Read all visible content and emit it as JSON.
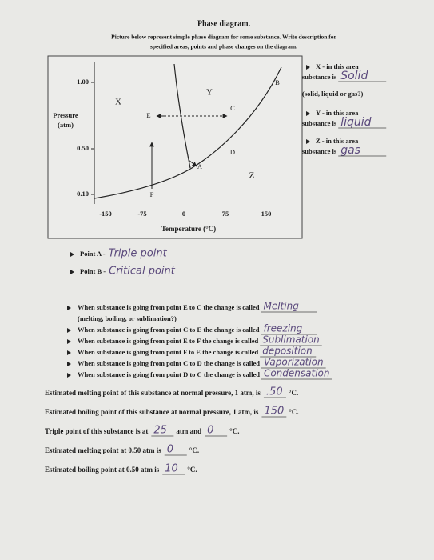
{
  "header": {
    "title": "Phase diagram.",
    "instructions": [
      "Picture below represent simple phase diagram for some substance. Write description for",
      "specified areas, points and phase changes on the diagram."
    ]
  },
  "diagram": {
    "y_label": [
      "Pressure",
      "(atm)"
    ],
    "x_label": "Temperature (°C)",
    "y_ticks": [
      "1.00",
      "0.50",
      "0.10"
    ],
    "x_ticks": [
      "-150",
      "-75",
      "0",
      "75",
      "150"
    ],
    "regions": [
      "X",
      "Y",
      "Z"
    ],
    "points": [
      "A",
      "B",
      "C",
      "D",
      "E",
      "F"
    ]
  },
  "areas": [
    {
      "prompt": [
        "X - in this area",
        "substance is"
      ],
      "answer": "Solid",
      "note": "(solid, liquid or gas?)"
    },
    {
      "prompt": [
        "Y - in this area",
        "substance is"
      ],
      "answer": "liquid"
    },
    {
      "prompt": [
        "Z - in this area",
        "substance is"
      ],
      "answer": "gas"
    }
  ],
  "points": [
    {
      "label": "Point A -",
      "answer": "Triple point"
    },
    {
      "label": "Point B -",
      "answer": "Critical point"
    }
  ],
  "changes": [
    {
      "text": "When substance is going from point E to C the change is called",
      "answer": "Melting",
      "note": "(melting, boiling, or sublimation?)"
    },
    {
      "text": "When substance is going from point C to E the change is called",
      "answer": "freezing"
    },
    {
      "text": "When substance is going from point E to F the change is called",
      "answer": "Sublimation"
    },
    {
      "text": "When substance is going from point F to E the change is called",
      "answer": "deposition"
    },
    {
      "text": "When substance is going from point C to D the change is called",
      "answer": "Vaporization"
    },
    {
      "text": "When substance is going from point D to C the change is called",
      "answer": "Condensation"
    }
  ],
  "estimates": [
    [
      "Estimated melting point of this substance at normal pressure, 1 atm, is",
      ".50",
      "°C."
    ],
    [
      "Estimated boiling point of this substance at normal pressure, 1 atm, is",
      "150",
      "°C."
    ],
    [
      "Triple point of this substance is at",
      "25",
      "atm and",
      "0",
      "°C."
    ],
    [
      "Estimated melting point at 0.50 atm is",
      "0",
      "°C."
    ],
    [
      "Estimated boiling point at 0.50 atm is",
      "10",
      "°C."
    ]
  ]
}
